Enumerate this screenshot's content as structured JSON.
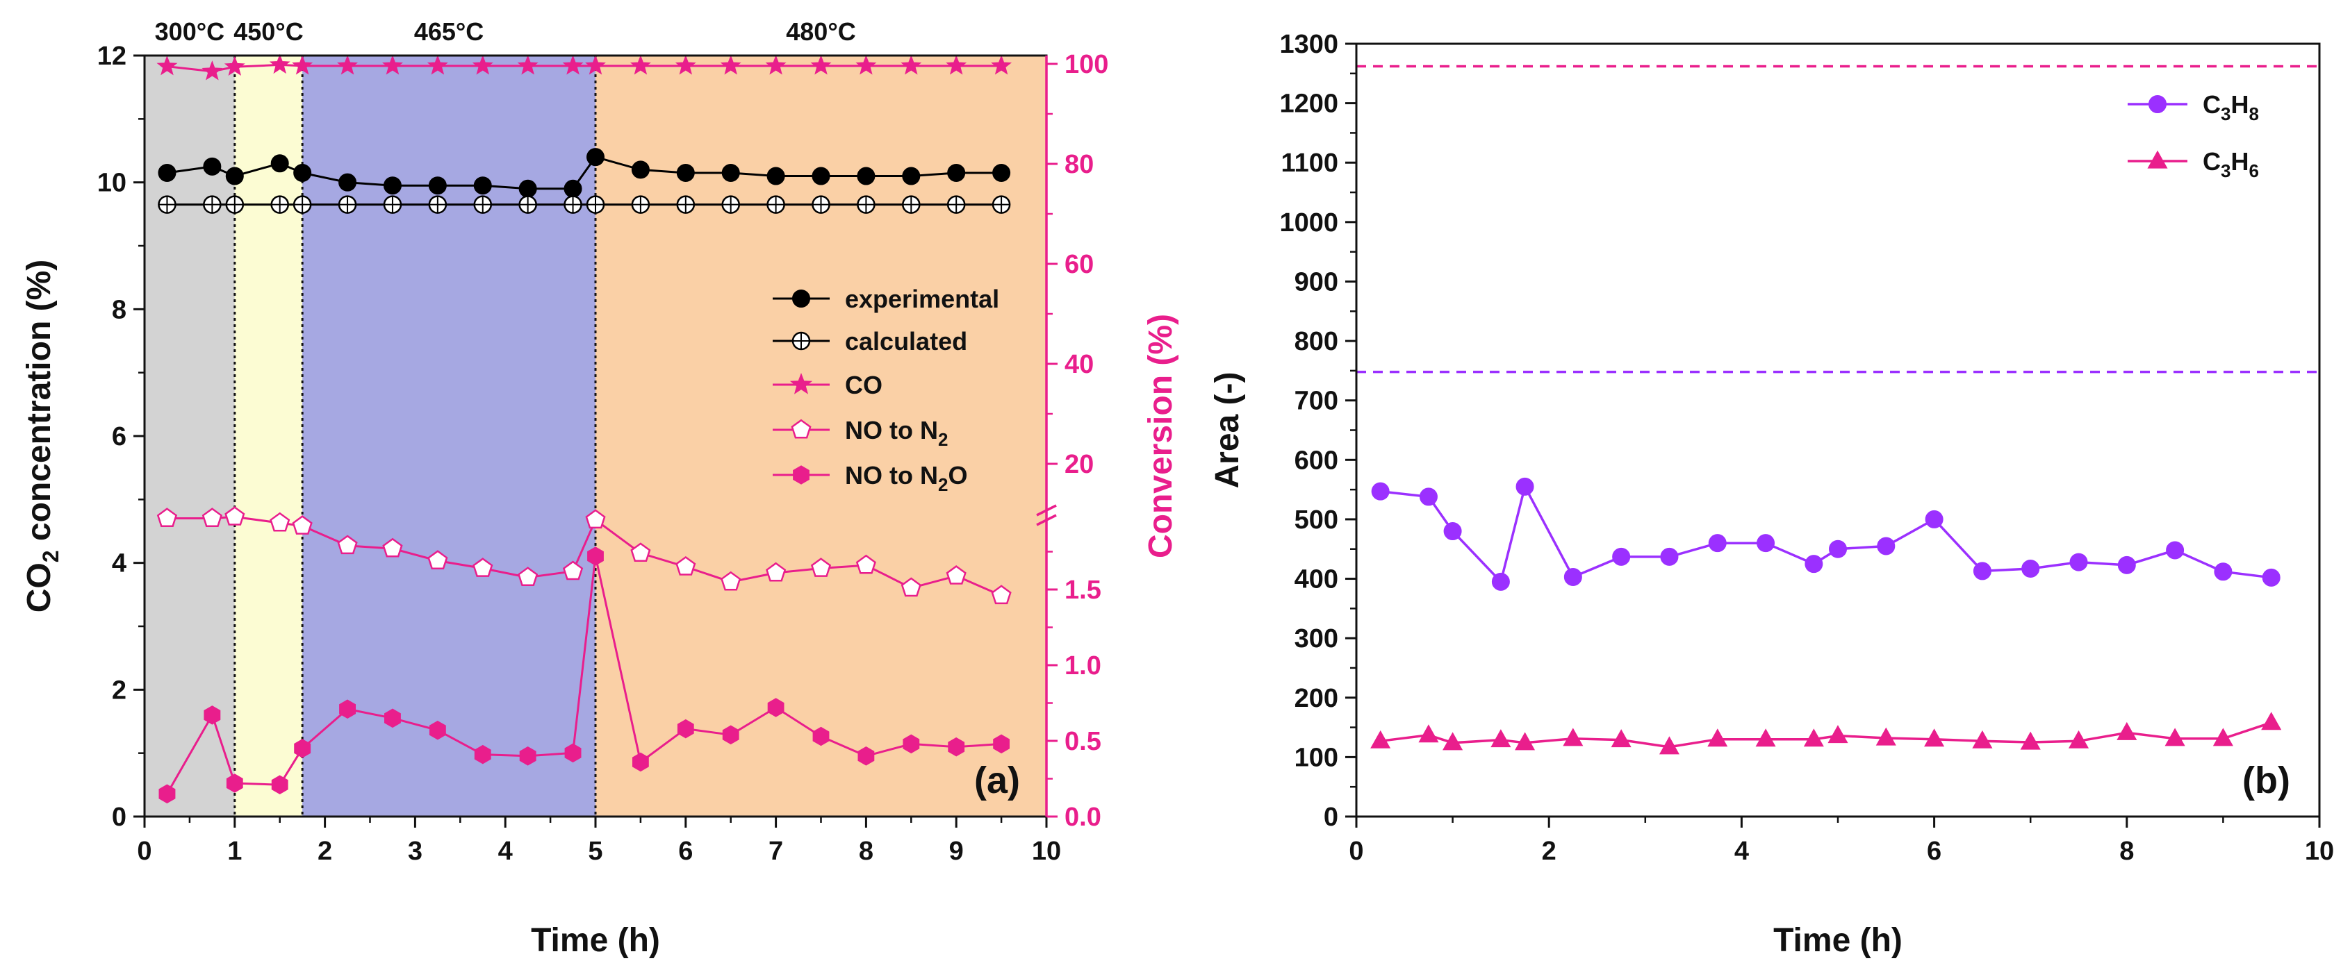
{
  "chart_data": [
    {
      "type": "line",
      "panel_label": "(a)",
      "xlabel": "Time (h)",
      "xlim": [
        0,
        10
      ],
      "x_ticks": [
        0,
        1,
        2,
        3,
        4,
        5,
        6,
        7,
        8,
        9,
        10
      ],
      "ylabel_left": {
        "main": "CO",
        "sub": "2",
        "rest": " concentration (%)"
      },
      "ylim_left": [
        0,
        12
      ],
      "y_left_ticks": [
        0,
        2,
        4,
        6,
        8,
        10,
        12
      ],
      "ylabel_right": "Conversion (%)",
      "y_right_lower_range": [
        0,
        2
      ],
      "y_right_lower_ticks": [
        "0.0",
        "0.5",
        "1.0",
        "1.5"
      ],
      "y_right_upper_range": [
        10,
        100
      ],
      "y_right_upper_ticks": [
        "20",
        "40",
        "60",
        "80",
        "100"
      ],
      "temperature_regions": [
        {
          "label": "300°C",
          "start": 0,
          "end": 1,
          "color": "#d3d3d3"
        },
        {
          "label": "450°C",
          "start": 1,
          "end": 1.75,
          "color": "#fcfcd3"
        },
        {
          "label": "465°C",
          "start": 1.75,
          "end": 5,
          "color": "#a6a8e2"
        },
        {
          "label": "480°C",
          "start": 5,
          "end": 10,
          "color": "#fad0a6"
        }
      ],
      "grid": false,
      "legend_position": "center-right",
      "series": [
        {
          "name": "experimental",
          "axis": "left",
          "color": "#000000",
          "marker": "circle-filled",
          "x": [
            0.25,
            0.75,
            1,
            1.5,
            1.75,
            2.25,
            2.75,
            3.25,
            3.75,
            4.25,
            4.75,
            5,
            5.5,
            6,
            6.5,
            7,
            7.5,
            8,
            8.5,
            9,
            9.5
          ],
          "y": [
            10.15,
            10.25,
            10.1,
            10.3,
            10.15,
            10.0,
            9.95,
            9.95,
            9.95,
            9.9,
            9.9,
            10.4,
            10.2,
            10.15,
            10.15,
            10.1,
            10.1,
            10.1,
            10.1,
            10.15,
            10.15
          ]
        },
        {
          "name": "calculated",
          "axis": "left",
          "color": "#000000",
          "marker": "circle-crossed",
          "x": [
            0.25,
            0.75,
            1,
            1.5,
            1.75,
            2.25,
            2.75,
            3.25,
            3.75,
            4.25,
            4.75,
            5,
            5.5,
            6,
            6.5,
            7,
            7.5,
            8,
            8.5,
            9,
            9.5
          ],
          "y": [
            9.65,
            9.65,
            9.65,
            9.65,
            9.65,
            9.65,
            9.65,
            9.65,
            9.65,
            9.65,
            9.65,
            9.65,
            9.65,
            9.65,
            9.65,
            9.65,
            9.65,
            9.65,
            9.65,
            9.65,
            9.65
          ]
        },
        {
          "name": "CO",
          "axis": "right",
          "color": "#e91e8c",
          "marker": "star",
          "x": [
            0.25,
            0.75,
            1,
            1.5,
            1.75,
            2.25,
            2.75,
            3.25,
            3.75,
            4.25,
            4.75,
            5,
            5.5,
            6,
            6.5,
            7,
            7.5,
            8,
            8.5,
            9,
            9.5
          ],
          "y": [
            99.5,
            98.5,
            99.4,
            99.8,
            99.6,
            99.6,
            99.6,
            99.6,
            99.6,
            99.6,
            99.6,
            99.6,
            99.6,
            99.6,
            99.6,
            99.6,
            99.6,
            99.6,
            99.6,
            99.6,
            99.6
          ]
        },
        {
          "name": "NO to N",
          "name_sub": "2",
          "axis": "right",
          "color": "#e91e8c",
          "marker": "pentagon-open",
          "x": [
            0.25,
            0.75,
            1,
            1.5,
            1.75,
            2.25,
            2.75,
            3.25,
            3.75,
            4.25,
            4.75,
            5,
            5.5,
            6,
            6.5,
            7,
            7.5,
            8,
            8.5,
            9,
            9.5
          ],
          "y": [
            1.97,
            1.97,
            1.98,
            1.94,
            1.92,
            1.79,
            1.77,
            1.69,
            1.64,
            1.58,
            1.62,
            1.96,
            1.74,
            1.65,
            1.55,
            1.61,
            1.64,
            1.66,
            1.51,
            1.59,
            1.46
          ]
        },
        {
          "name": "NO to N",
          "name_sub": "2",
          "name_rest": "O",
          "axis": "right",
          "color": "#e91e8c",
          "marker": "hexagon-filled",
          "x": [
            0.25,
            0.75,
            1,
            1.5,
            1.75,
            2.25,
            2.75,
            3.25,
            3.75,
            4.25,
            4.75,
            5,
            5.5,
            6,
            6.5,
            7,
            7.5,
            8,
            8.5,
            9,
            9.5
          ],
          "y": [
            0.15,
            0.67,
            0.22,
            0.21,
            0.45,
            0.71,
            0.65,
            0.57,
            0.41,
            0.4,
            0.42,
            1.72,
            0.36,
            0.58,
            0.54,
            0.72,
            0.53,
            0.4,
            0.48,
            0.46,
            0.48
          ]
        }
      ]
    },
    {
      "type": "line",
      "panel_label": "(b)",
      "xlabel": "Time (h)",
      "xlim": [
        0,
        10
      ],
      "x_ticks": [
        0,
        2,
        4,
        6,
        8,
        10
      ],
      "ylabel": "Area (-)",
      "ylim": [
        0,
        1300
      ],
      "y_ticks": [
        0,
        100,
        200,
        300,
        400,
        500,
        600,
        700,
        800,
        900,
        1000,
        1100,
        1200,
        1300
      ],
      "grid": false,
      "legend_position": "top-right",
      "reference_lines": [
        {
          "y": 1262,
          "color": "#e91e8c",
          "style": "dashed"
        },
        {
          "y": 748,
          "color": "#9b30ff",
          "style": "dashed"
        }
      ],
      "series": [
        {
          "name": "C",
          "name_sub1": "3",
          "name_mid": "H",
          "name_sub2": "8",
          "color": "#9b30ff",
          "marker": "circle-filled",
          "x": [
            0.25,
            0.75,
            1,
            1.5,
            1.75,
            2.25,
            2.75,
            3.25,
            3.75,
            4.25,
            4.75,
            5,
            5.5,
            6,
            6.5,
            7,
            7.5,
            8,
            8.5,
            9,
            9.5
          ],
          "y": [
            547,
            538,
            480,
            395,
            555,
            403,
            437,
            437,
            460,
            460,
            425,
            450,
            455,
            500,
            413,
            417,
            428,
            423,
            448,
            412,
            402
          ]
        },
        {
          "name": "C",
          "name_sub1": "3",
          "name_mid": "H",
          "name_sub2": "6",
          "color": "#e91e8c",
          "marker": "triangle-filled",
          "x": [
            0.25,
            0.75,
            1,
            1.5,
            1.75,
            2.25,
            2.75,
            3.25,
            3.75,
            4.25,
            4.75,
            5,
            5.5,
            6,
            6.5,
            7,
            7.5,
            8,
            8.5,
            9,
            9.5
          ],
          "y": [
            127,
            137,
            124,
            129,
            124,
            131,
            129,
            117,
            130,
            130,
            130,
            136,
            132,
            130,
            127,
            125,
            127,
            141,
            131,
            131,
            158
          ]
        }
      ]
    }
  ]
}
